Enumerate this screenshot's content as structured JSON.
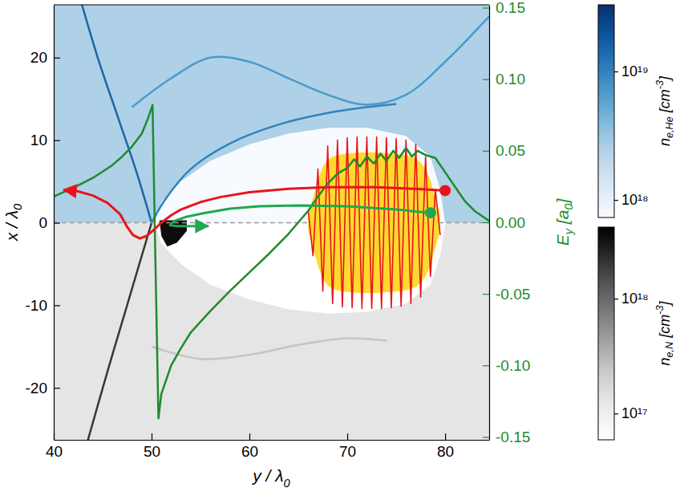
{
  "chart_data": {
    "type": "line",
    "xlabel": [
      {
        "text": "y / λ"
      },
      {
        "sub": "0"
      }
    ],
    "ylabel": [
      {
        "text": "x / λ"
      },
      {
        "sub": "0"
      }
    ],
    "y2label": [
      {
        "text": "E"
      },
      {
        "sub": "y"
      },
      {
        "text": " [a"
      },
      {
        "sub": "0"
      },
      {
        "text": "]"
      }
    ],
    "xlim": [
      40,
      84.5
    ],
    "xticks": [
      40,
      50,
      60,
      70,
      80
    ],
    "ylim": [
      -26.3,
      26.4
    ],
    "yticks": [
      -20,
      -10,
      0,
      10,
      20
    ],
    "y2lim": [
      -0.152,
      0.152
    ],
    "y2ticks": [
      -0.15,
      {
        "value": -0.1,
        "label": "-0.10"
      },
      -0.05,
      {
        "value": 0,
        "label": "0.00"
      },
      0.05,
      {
        "value": 0.1,
        "label": "0.10"
      },
      0.15
    ],
    "density": [
      {
        "color": "Blues",
        "colorbar": {
          "range": [
            7.3e+17,
            3.3e+19
          ],
          "ticks": [
            {
              "value": 1e+18,
              "label": "10¹⁸"
            },
            {
              "value": 1e+19,
              "label": "10¹⁹"
            }
          ],
          "title": [
            {
              "text": "n"
            },
            {
              "sub": "e,He"
            },
            {
              "text": " [cm"
            },
            {
              "sup": "-3"
            },
            {
              "text": "]"
            }
          ]
        },
        "regions": [
          {
            "density": 2.5e+18,
            "points": [
              [
                40,
                0
              ],
              [
                84.5,
                0
              ],
              [
                84.5,
                26.4
              ],
              [
                40,
                26.4
              ]
            ]
          },
          {
            "density": 7e+17,
            "points": [
              [
                50.3,
                0
              ],
              [
                51,
                2.5
              ],
              [
                53,
                5
              ],
              [
                56,
                7.5
              ],
              [
                60,
                9.5
              ],
              [
                64,
                10.8
              ],
              [
                68,
                11.5
              ],
              [
                72,
                11.5
              ],
              [
                76,
                10.5
              ],
              [
                78.5,
                8
              ],
              [
                79.5,
                4
              ],
              [
                80,
                0
              ]
            ]
          }
        ],
        "lines": [
          {
            "density": 1.5e+19,
            "points": [
              [
                42.5,
                28
              ],
              [
                44.5,
                20
              ],
              [
                46.5,
                13
              ],
              [
                48.5,
                6
              ],
              [
                50,
                0
              ]
            ]
          },
          {
            "density": 1e+19,
            "points": [
              [
                50,
                0
              ],
              [
                51.5,
                3
              ],
              [
                54,
                6.5
              ],
              [
                58,
                9.6
              ],
              [
                63,
                11.9
              ],
              [
                68,
                13.3
              ],
              [
                72,
                14
              ],
              [
                75,
                14.4
              ]
            ]
          },
          {
            "density": 7e+18,
            "points": [
              [
                48,
                14
              ],
              [
                52,
                17.5
              ],
              [
                56,
                20
              ],
              [
                60,
                19.5
              ],
              [
                64,
                17.5
              ],
              [
                68,
                15.5
              ],
              [
                72,
                14.3
              ],
              [
                76,
                15.5
              ],
              [
                80,
                19.5
              ],
              [
                84.5,
                25
              ]
            ]
          }
        ]
      },
      {
        "color": "Greys",
        "colorbar": {
          "range": [
            5.9e+16,
            4.2e+18
          ],
          "ticks": [
            {
              "value": 1e+17,
              "label": "10¹⁷"
            },
            {
              "value": 1e+18,
              "label": "10¹⁸"
            }
          ],
          "title": [
            {
              "text": "n"
            },
            {
              "sub": "e,N"
            },
            {
              "text": " [cm"
            },
            {
              "sup": "-3"
            },
            {
              "text": "]"
            }
          ]
        },
        "regions": [
          {
            "density": 1.3e+17,
            "points": [
              [
                40,
                0
              ],
              [
                84.5,
                0
              ],
              [
                84.5,
                -26.3
              ],
              [
                40,
                -26.3
              ]
            ]
          },
          {
            "density": 5e+16,
            "points": [
              [
                50.3,
                0
              ],
              [
                51,
                -2.5
              ],
              [
                53,
                -5
              ],
              [
                56,
                -7.5
              ],
              [
                60,
                -9.3
              ],
              [
                64,
                -10.5
              ],
              [
                68,
                -11
              ],
              [
                72,
                -10.8
              ],
              [
                76,
                -9.8
              ],
              [
                78.5,
                -7.5
              ],
              [
                79.5,
                -4
              ],
              [
                80,
                0
              ]
            ]
          },
          {
            "density": 3.5e+18,
            "points": [
              [
                50.8,
                0.3
              ],
              [
                53.6,
                0.3
              ],
              [
                53.6,
                -1
              ],
              [
                52.6,
                -2.4
              ],
              [
                51.6,
                -2.9
              ],
              [
                51,
                -1.6
              ]
            ]
          }
        ],
        "lines": [
          {
            "density": 2e+18,
            "points": [
              [
                43.5,
                -26.3
              ],
              [
                45.5,
                -18
              ],
              [
                47.5,
                -10
              ],
              [
                49,
                -4
              ],
              [
                50,
                0
              ]
            ]
          },
          {
            "density": 2.5e+17,
            "points": [
              [
                50,
                -15
              ],
              [
                55,
                -16.5
              ],
              [
                60,
                -16
              ],
              [
                65,
                -14.8
              ],
              [
                70,
                -14
              ],
              [
                74,
                -14.3
              ]
            ]
          }
        ]
      }
    ],
    "series": [
      {
        "type": "area",
        "color": "#ffd92f",
        "x": [
          66,
          66.5,
          67,
          67.5,
          68,
          68.5,
          69,
          69.5,
          70,
          70.5,
          71,
          71.5,
          72,
          72.5,
          73,
          73.5,
          74,
          74.5,
          75,
          75.5,
          76,
          76.5,
          77,
          77.5,
          78,
          78.5,
          79,
          79.5
        ],
        "values": [
          1,
          3,
          5.2,
          6.8,
          7.6,
          8,
          8.2,
          8.3,
          8.4,
          8.4,
          8.5,
          8.5,
          8.5,
          8.5,
          8.5,
          8.5,
          8.4,
          8.4,
          8.3,
          8.3,
          8.2,
          8,
          7.8,
          7.3,
          6.5,
          5.2,
          3,
          1
        ],
        "lower": [
          -1,
          -3,
          -5.2,
          -6.8,
          -7.6,
          -8,
          -8.2,
          -8.3,
          -8.4,
          -8.4,
          -8.5,
          -8.5,
          -8.5,
          -8.5,
          -8.5,
          -8.5,
          -8.4,
          -8.4,
          -8.3,
          -8.3,
          -8.2,
          -8,
          -7.8,
          -7.3,
          -6.5,
          -5.2,
          -3,
          -1
        ]
      },
      {
        "type": "line",
        "color": "#e8141b",
        "line_style": "solid",
        "x": [
          66,
          66.5,
          67,
          67.5,
          68,
          68.5,
          69,
          69.5,
          70,
          70.5,
          71,
          71.5,
          72,
          72.5,
          73,
          73.5,
          74,
          74.5,
          75,
          75.5,
          76,
          76.5,
          77,
          77.5,
          78,
          78.5,
          79,
          79.5
        ],
        "values": [
          1.5,
          -4,
          6.5,
          -8.3,
          9.3,
          -9.8,
          10,
          -10.2,
          10.3,
          -10.3,
          10.4,
          -10.4,
          10.4,
          -10.4,
          10.4,
          -10.4,
          10.3,
          -10.3,
          10.2,
          -10.1,
          10,
          -9.8,
          9.5,
          -9,
          8,
          -6.5,
          4,
          -1.5
        ]
      },
      {
        "type": "line",
        "color": "#1e8a2e",
        "axis": "y2",
        "line_style": "solid",
        "x": [
          40,
          42,
          44,
          46,
          47,
          48,
          49,
          49.6,
          50.1,
          50.4,
          50.7,
          51,
          52,
          53,
          54,
          56,
          58,
          60,
          62,
          64,
          66,
          67,
          68,
          69,
          70,
          70.7,
          71.3,
          72,
          72.7,
          73.4,
          74,
          74.7,
          75.3,
          76,
          76.6,
          77.2,
          78,
          79,
          80,
          81,
          82,
          83,
          84.5
        ],
        "values": [
          0.018,
          0.024,
          0.031,
          0.04,
          0.046,
          0.053,
          0.062,
          0.072,
          0.082,
          -0.03,
          -0.137,
          -0.12,
          -0.1,
          -0.088,
          -0.077,
          -0.062,
          -0.048,
          -0.035,
          -0.022,
          -0.008,
          0.008,
          0.018,
          0.027,
          0.034,
          0.038,
          0.044,
          0.039,
          0.046,
          0.041,
          0.048,
          0.043,
          0.05,
          0.045,
          0.052,
          0.046,
          0.05,
          0.047,
          0.045,
          0.035,
          0.025,
          0.015,
          0.008,
          0.001
        ]
      },
      {
        "type": "line",
        "color": "#e8141b",
        "marker": "circle",
        "line_style": "solid",
        "x": [
          80,
          77,
          73,
          68,
          64,
          60,
          57,
          55,
          53,
          52,
          51,
          50.2,
          49.5,
          48.8,
          48.1,
          47.5,
          46.8,
          45.5,
          44,
          42.5,
          41
        ],
        "values": [
          3.9,
          4.1,
          4.3,
          4.3,
          4.1,
          3.7,
          3.1,
          2.5,
          1.6,
          0.9,
          0,
          -0.9,
          -1.6,
          -1.9,
          -1.5,
          -0.5,
          1,
          2.4,
          3.3,
          3.8,
          4
        ]
      },
      {
        "type": "line",
        "color": "#1fa84f",
        "marker": "circle",
        "line_style": "solid",
        "x": [
          78.5,
          75,
          70,
          65,
          61,
          58,
          55.5,
          53.5,
          52.3,
          51.9,
          52.5,
          54,
          55.8
        ],
        "values": [
          1.2,
          1.6,
          2,
          2.1,
          2,
          1.7,
          1.2,
          0.7,
          0.2,
          -0.3,
          -0.4,
          -0.4,
          -0.4
        ]
      }
    ]
  }
}
